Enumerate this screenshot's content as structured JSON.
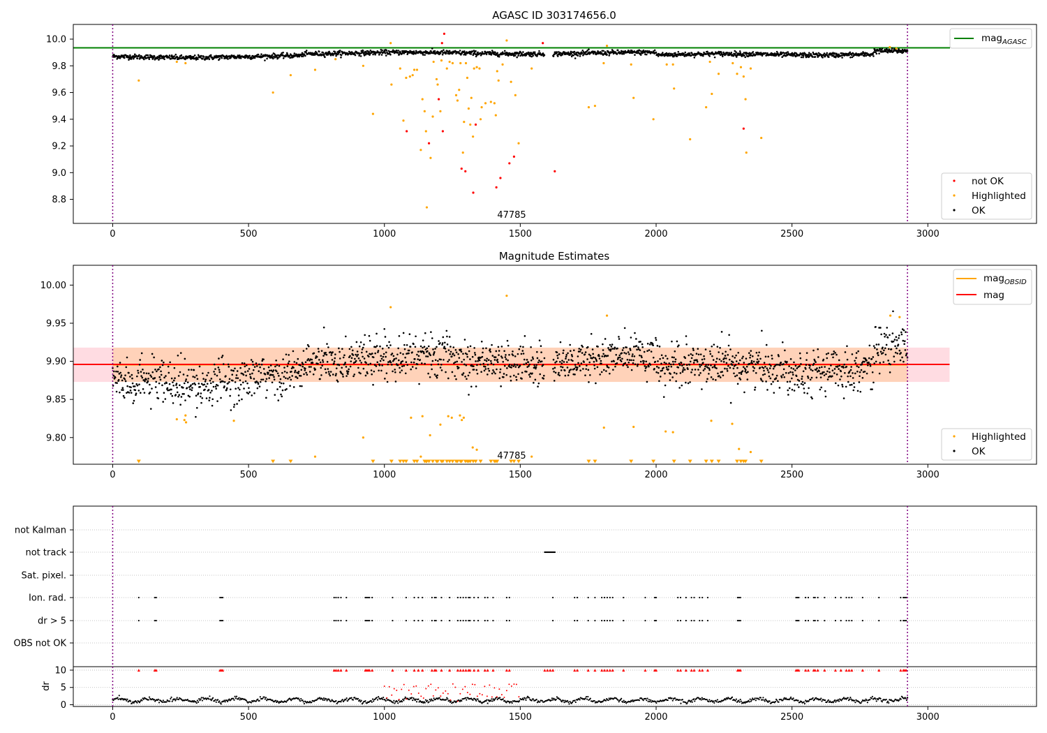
{
  "chart_data": [
    {
      "type": "scatter",
      "title": "AGASC ID 303174656.0",
      "xlim": [
        -145,
        3400
      ],
      "ylim": [
        8.62,
        10.11
      ],
      "xticks": [
        0,
        500,
        1000,
        1500,
        2000,
        2500,
        3000
      ],
      "yticks": [
        8.8,
        9.0,
        9.2,
        9.4,
        9.6,
        9.8,
        10.0
      ],
      "ytick_labels": [
        "8.8",
        "9.0",
        "9.2",
        "9.4",
        "9.6",
        "9.8",
        "10.0"
      ],
      "vlines": [
        0,
        2925
      ],
      "hlines": [
        {
          "name": "mag",
          "subscript": "AGASC",
          "y": 9.935,
          "color": "#008000"
        }
      ],
      "annotation": {
        "text": "47785",
        "x": 1460
      },
      "series": [
        {
          "name": "not OK",
          "color": "#ff0000",
          "points": [
            [
              1082,
              9.31
            ],
            [
              1164,
              9.22
            ],
            [
              1200,
              9.55
            ],
            [
              1212,
              9.97
            ],
            [
              1215,
              9.31
            ],
            [
              1220,
              10.04
            ],
            [
              1284,
              9.03
            ],
            [
              1298,
              9.01
            ],
            [
              1327,
              8.85
            ],
            [
              1336,
              9.36
            ],
            [
              1412,
              8.89
            ],
            [
              1427,
              8.96
            ],
            [
              1460,
              9.07
            ],
            [
              1477,
              9.12
            ],
            [
              1583,
              9.97
            ],
            [
              1627,
              9.01
            ],
            [
              2322,
              9.33
            ]
          ]
        },
        {
          "name": "Highlighted",
          "color": "#ffa500",
          "points": [
            [
              96,
              9.69
            ],
            [
              236,
              9.83
            ],
            [
              268,
              9.82
            ],
            [
              590,
              9.6
            ],
            [
              655,
              9.73
            ],
            [
              745,
              9.77
            ],
            [
              820,
              9.85
            ],
            [
              922,
              9.8
            ],
            [
              958,
              9.44
            ],
            [
              1023,
              9.97
            ],
            [
              1026,
              9.66
            ],
            [
              1058,
              9.78
            ],
            [
              1070,
              9.39
            ],
            [
              1080,
              9.71
            ],
            [
              1094,
              9.72
            ],
            [
              1104,
              9.73
            ],
            [
              1110,
              9.77
            ],
            [
              1120,
              9.77
            ],
            [
              1134,
              9.17
            ],
            [
              1140,
              9.55
            ],
            [
              1148,
              9.46
            ],
            [
              1153,
              9.31
            ],
            [
              1156,
              8.74
            ],
            [
              1170,
              9.11
            ],
            [
              1178,
              9.42
            ],
            [
              1181,
              9.83
            ],
            [
              1192,
              9.7
            ],
            [
              1196,
              9.66
            ],
            [
              1206,
              9.46
            ],
            [
              1210,
              9.84
            ],
            [
              1230,
              9.78
            ],
            [
              1240,
              9.83
            ],
            [
              1251,
              9.82
            ],
            [
              1264,
              9.58
            ],
            [
              1269,
              9.54
            ],
            [
              1275,
              9.62
            ],
            [
              1280,
              9.82
            ],
            [
              1289,
              9.15
            ],
            [
              1293,
              9.38
            ],
            [
              1300,
              9.82
            ],
            [
              1305,
              9.71
            ],
            [
              1310,
              9.48
            ],
            [
              1316,
              9.36
            ],
            [
              1320,
              9.56
            ],
            [
              1326,
              9.27
            ],
            [
              1330,
              9.78
            ],
            [
              1340,
              9.79
            ],
            [
              1350,
              9.78
            ],
            [
              1354,
              9.4
            ],
            [
              1358,
              9.49
            ],
            [
              1372,
              9.52
            ],
            [
              1392,
              9.53
            ],
            [
              1405,
              9.52
            ],
            [
              1410,
              9.43
            ],
            [
              1415,
              9.76
            ],
            [
              1420,
              9.69
            ],
            [
              1435,
              9.81
            ],
            [
              1450,
              9.99
            ],
            [
              1466,
              9.68
            ],
            [
              1482,
              9.58
            ],
            [
              1494,
              9.22
            ],
            [
              1542,
              9.78
            ],
            [
              1752,
              9.49
            ],
            [
              1775,
              9.5
            ],
            [
              1807,
              9.82
            ],
            [
              1819,
              9.95
            ],
            [
              1908,
              9.81
            ],
            [
              1917,
              9.56
            ],
            [
              1990,
              9.4
            ],
            [
              2039,
              9.81
            ],
            [
              2062,
              9.81
            ],
            [
              2066,
              9.63
            ],
            [
              2125,
              9.25
            ],
            [
              2184,
              9.49
            ],
            [
              2198,
              9.83
            ],
            [
              2205,
              9.59
            ],
            [
              2230,
              9.74
            ],
            [
              2282,
              9.82
            ],
            [
              2298,
              9.74
            ],
            [
              2312,
              9.79
            ],
            [
              2322,
              9.72
            ],
            [
              2329,
              9.55
            ],
            [
              2332,
              9.15
            ],
            [
              2348,
              9.78
            ],
            [
              2387,
              9.26
            ],
            [
              2860,
              9.94
            ],
            [
              2884,
              9.93
            ]
          ]
        }
      ],
      "ok_series": {
        "name": "OK",
        "color": "#000000",
        "x_range": [
          0,
          2925
        ],
        "y_mean": 9.89,
        "y_spread": 0.03
      }
    },
    {
      "type": "scatter",
      "title": "Magnitude Estimates",
      "xlim": [
        -145,
        3400
      ],
      "ylim": [
        9.765,
        10.026
      ],
      "xticks": [
        0,
        500,
        1000,
        1500,
        2000,
        2500,
        3000
      ],
      "yticks": [
        9.8,
        9.85,
        9.9,
        9.95,
        10.0
      ],
      "ytick_labels": [
        "9.80",
        "9.85",
        "9.90",
        "9.95",
        "10.00"
      ],
      "vlines": [
        0,
        2925
      ],
      "mag_line": {
        "name": "mag",
        "y": 9.896,
        "color": "#ff0000",
        "band": [
          9.873,
          9.918
        ],
        "band_x": [
          -145,
          3080
        ],
        "band_color": "#ffc0cb"
      },
      "obsid_line": {
        "name": "mag",
        "subscript": "OBSID",
        "y": 9.8955,
        "color": "#ffa500",
        "band": [
          9.873,
          9.918
        ],
        "band_x": [
          0,
          2925
        ]
      },
      "annotation": {
        "text": "47785",
        "x": 1460
      },
      "series": [
        {
          "name": "Highlighted",
          "color": "#ffa500",
          "points": [
            [
              236,
              9.824
            ],
            [
              264,
              9.823
            ],
            [
              268,
              9.829
            ],
            [
              270,
              9.82
            ],
            [
              446,
              9.822
            ],
            [
              745,
              9.775
            ],
            [
              922,
              9.8
            ],
            [
              1023,
              9.971
            ],
            [
              1098,
              9.826
            ],
            [
              1134,
              9.775
            ],
            [
              1140,
              9.828
            ],
            [
              1168,
              9.803
            ],
            [
              1206,
              9.817
            ],
            [
              1235,
              9.828
            ],
            [
              1248,
              9.826
            ],
            [
              1278,
              9.829
            ],
            [
              1285,
              9.823
            ],
            [
              1292,
              9.826
            ],
            [
              1325,
              9.787
            ],
            [
              1340,
              9.784
            ],
            [
              1450,
              9.986
            ],
            [
              1542,
              9.775
            ],
            [
              1819,
              9.96
            ],
            [
              1808,
              9.813
            ],
            [
              1917,
              9.814
            ],
            [
              2035,
              9.808
            ],
            [
              2062,
              9.807
            ],
            [
              2203,
              9.822
            ],
            [
              2280,
              9.818
            ],
            [
              2305,
              9.785
            ],
            [
              2348,
              9.781
            ],
            [
              2862,
              9.96
            ],
            [
              2896,
              9.958
            ]
          ]
        }
      ],
      "below_axis_markers_x": [
        96,
        590,
        655,
        958,
        1026,
        1058,
        1070,
        1080,
        1110,
        1120,
        1148,
        1153,
        1156,
        1164,
        1178,
        1192,
        1196,
        1210,
        1215,
        1230,
        1240,
        1251,
        1264,
        1269,
        1280,
        1284,
        1298,
        1305,
        1310,
        1316,
        1327,
        1336,
        1354,
        1392,
        1405,
        1410,
        1415,
        1466,
        1477,
        1494,
        1752,
        1775,
        1908,
        1990,
        2066,
        2125,
        2184,
        2205,
        2230,
        2298,
        2312,
        2322,
        2329,
        2387
      ],
      "ok_series": {
        "name": "OK",
        "color": "#000000",
        "x_range": [
          0,
          2925
        ],
        "y_mean": 9.895,
        "y_spread": 0.015
      }
    },
    {
      "type": "scatter",
      "xlim": [
        -145,
        3400
      ],
      "xticks": [
        0,
        500,
        1000,
        1500,
        2000,
        2500,
        3000
      ],
      "vlines": [
        0,
        2925
      ],
      "flag_rows": [
        "not Kalman",
        "not track",
        "Sat. pixel.",
        "Ion. rad.",
        "dr > 5",
        "OBS not OK"
      ],
      "not_track_x": [
        1590,
        1600,
        1610,
        1620
      ],
      "flag_x": [
        96,
        155,
        160,
        395,
        400,
        405,
        815,
        822,
        830,
        840,
        860,
        930,
        935,
        940,
        945,
        955,
        1030,
        1080,
        1110,
        1125,
        1140,
        1175,
        1185,
        1190,
        1210,
        1240,
        1270,
        1280,
        1290,
        1300,
        1310,
        1315,
        1330,
        1345,
        1370,
        1380,
        1400,
        1450,
        1460,
        1620,
        1700,
        1710,
        1750,
        1775,
        1800,
        1810,
        1820,
        1830,
        1840,
        1880,
        1960,
        1995,
        2000,
        2080,
        2090,
        2110,
        2130,
        2140,
        2160,
        2170,
        2190,
        2300,
        2305,
        2310,
        2515,
        2520,
        2525,
        2550,
        2560,
        2580,
        2585,
        2595,
        2620,
        2660,
        2680,
        2700,
        2710,
        2720,
        2760,
        2820,
        2900,
        2910,
        2915,
        2920
      ],
      "dr_axis": {
        "ylabel": "dr",
        "ylim": [
          -0.5,
          11
        ],
        "yticks": [
          0,
          5,
          10
        ],
        "ytick_labels": [
          "0",
          "5",
          "10"
        ]
      }
    }
  ]
}
